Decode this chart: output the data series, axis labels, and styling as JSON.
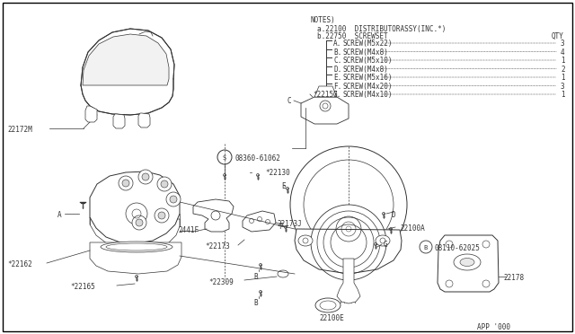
{
  "background_color": "#ffffff",
  "line_color": "#333333",
  "text_color": "#333333",
  "notes_title": "NOTES)",
  "notes_a": "a.22100  DISTRIBUTORASSY(INC.*)",
  "notes_b": "b.22750  SCREWSET",
  "notes_qty": "QTY",
  "screw_items": [
    {
      "label": "A.",
      "desc": "SCREW(M5x22)",
      "qty": "3"
    },
    {
      "label": "B.",
      "desc": "SCREW(M4x8)",
      "qty": "4"
    },
    {
      "label": "C.",
      "desc": "SCREW(M5x10)",
      "qty": "1"
    },
    {
      "label": "D.",
      "desc": "SCREW(M4x8)",
      "qty": "2"
    },
    {
      "label": "E.",
      "desc": "SCREW(M5x16)",
      "qty": "1"
    },
    {
      "label": "F.",
      "desc": "SCREW(M4x20)",
      "qty": "3"
    },
    {
      "label": "G.",
      "desc": "SCREW(M4x10)",
      "qty": "1"
    }
  ],
  "figsize": [
    6.4,
    3.72
  ],
  "dpi": 100
}
